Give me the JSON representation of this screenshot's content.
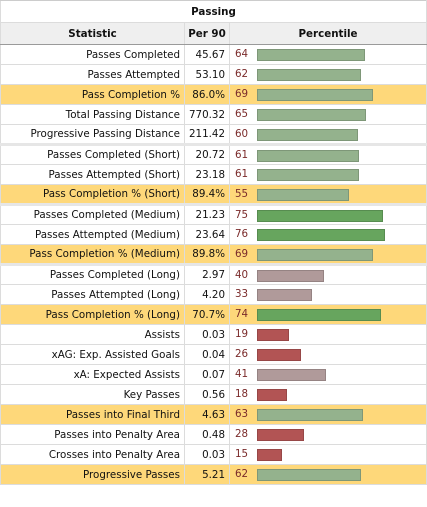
{
  "table": {
    "title": "Passing",
    "headers": [
      "Statistic",
      "Per 90",
      "Percentile"
    ],
    "rows": [
      {
        "stat": "Passes Completed",
        "per90": "45.67",
        "pct": 64,
        "hl": false,
        "gap": false
      },
      {
        "stat": "Passes Attempted",
        "per90": "53.10",
        "pct": 62,
        "hl": false,
        "gap": false
      },
      {
        "stat": "Pass Completion %",
        "per90": "86.0%",
        "pct": 69,
        "hl": true,
        "gap": false
      },
      {
        "stat": "Total Passing Distance",
        "per90": "770.32",
        "pct": 65,
        "hl": false,
        "gap": false
      },
      {
        "stat": "Progressive Passing Distance",
        "per90": "211.42",
        "pct": 60,
        "hl": false,
        "gap": false
      },
      {
        "stat": "Passes Completed (Short)",
        "per90": "20.72",
        "pct": 61,
        "hl": false,
        "gap": true
      },
      {
        "stat": "Passes Attempted (Short)",
        "per90": "23.18",
        "pct": 61,
        "hl": false,
        "gap": false
      },
      {
        "stat": "Pass Completion % (Short)",
        "per90": "89.4%",
        "pct": 55,
        "hl": true,
        "gap": false
      },
      {
        "stat": "Passes Completed (Medium)",
        "per90": "21.23",
        "pct": 75,
        "hl": false,
        "gap": true
      },
      {
        "stat": "Passes Attempted (Medium)",
        "per90": "23.64",
        "pct": 76,
        "hl": false,
        "gap": false
      },
      {
        "stat": "Pass Completion % (Medium)",
        "per90": "89.8%",
        "pct": 69,
        "hl": true,
        "gap": false
      },
      {
        "stat": "Passes Completed (Long)",
        "per90": "2.97",
        "pct": 40,
        "hl": false,
        "gap": true
      },
      {
        "stat": "Passes Attempted (Long)",
        "per90": "4.20",
        "pct": 33,
        "hl": false,
        "gap": false
      },
      {
        "stat": "Pass Completion % (Long)",
        "per90": "70.7%",
        "pct": 74,
        "hl": true,
        "gap": false
      },
      {
        "stat": "Assists",
        "per90": "0.03",
        "pct": 19,
        "hl": false,
        "gap": false
      },
      {
        "stat": "xAG: Exp. Assisted Goals",
        "per90": "0.04",
        "pct": 26,
        "hl": false,
        "gap": false
      },
      {
        "stat": "xA: Expected Assists",
        "per90": "0.07",
        "pct": 41,
        "hl": false,
        "gap": false
      },
      {
        "stat": "Key Passes",
        "per90": "0.56",
        "pct": 18,
        "hl": false,
        "gap": false
      },
      {
        "stat": "Passes into Final Third",
        "per90": "4.63",
        "pct": 63,
        "hl": true,
        "gap": false
      },
      {
        "stat": "Passes into Penalty Area",
        "per90": "0.48",
        "pct": 28,
        "hl": false,
        "gap": false
      },
      {
        "stat": "Crosses into Penalty Area",
        "per90": "0.03",
        "pct": 15,
        "hl": false,
        "gap": false
      },
      {
        "stat": "Progressive Passes",
        "per90": "5.21",
        "pct": 62,
        "hl": true,
        "gap": false
      }
    ]
  },
  "colors": {
    "highlight": "#fed87a",
    "bar_low": "#b25454",
    "bar_mid": "#b09a9a",
    "bar_green": "#94b28d",
    "bar_high": "#67a55e"
  }
}
